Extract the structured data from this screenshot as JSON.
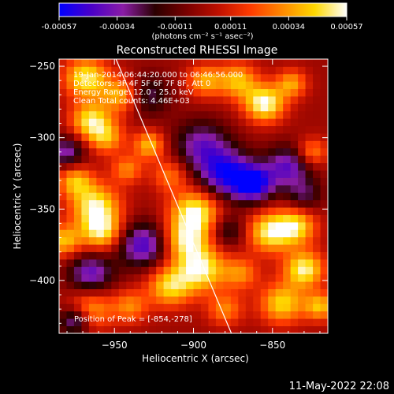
{
  "chart_data": {
    "type": "heatmap",
    "title": "Reconstructed RHESSI Image",
    "colorbar": {
      "ticks": [
        "-0.00057",
        "-0.00034",
        "-0.00011",
        "0.00011",
        "0.00034",
        "0.00057"
      ],
      "unit_label": "(photons cm⁻² s⁻¹ asec⁻²)",
      "range": [
        -0.00057,
        0.00057
      ],
      "colormap": [
        "#0000ff",
        "#4a00c8",
        "#8a1ca6",
        "#2a0000",
        "#7a0000",
        "#c01000",
        "#ff3c00",
        "#ff8a00",
        "#ffd800",
        "#ffffff"
      ]
    },
    "xlabel": "Heliocentric X (arcsec)",
    "ylabel": "Heliocentric Y (arcsec)",
    "xlim": [
      -985,
      -815
    ],
    "ylim": [
      -437,
      -245
    ],
    "xticks": [
      -950,
      -900,
      -850
    ],
    "yticks": [
      -250,
      -300,
      -350,
      -400
    ],
    "xtick_labels": [
      "−950",
      "−900",
      "−850"
    ],
    "ytick_labels": [
      "−250",
      "−300",
      "−350",
      "−400"
    ],
    "limb_line": {
      "points": [
        [
          -949,
          -245
        ],
        [
          -876,
          -437
        ]
      ]
    },
    "info_lines": [
      "19-Jan-2014 06:44:20.000 to 06:46:56.000",
      "Detectors: 3F 4F 5F 6F 7F 8F, Att 0",
      "Energy Range: 12.0 - 25.0 keV",
      "Clean     Total counts: 4.46E+03"
    ],
    "peak_text": "Position of Peak = [-854,-278]",
    "peak_position": [
      -854,
      -278
    ],
    "blobs": [
      {
        "x": -968,
        "y": -258,
        "amp": 0.0005,
        "sigma": 10
      },
      {
        "x": -945,
        "y": -270,
        "amp": 0.00042,
        "sigma": 9
      },
      {
        "x": -965,
        "y": -288,
        "amp": 0.00048,
        "sigma": 9
      },
      {
        "x": -955,
        "y": -300,
        "amp": 0.00035,
        "sigma": 8
      },
      {
        "x": -928,
        "y": -305,
        "amp": 0.0004,
        "sigma": 7
      },
      {
        "x": -915,
        "y": -326,
        "amp": 0.00028,
        "sigma": 8
      },
      {
        "x": -942,
        "y": -322,
        "amp": 0.0003,
        "sigma": 7
      },
      {
        "x": -962,
        "y": -348,
        "amp": 0.00052,
        "sigma": 11
      },
      {
        "x": -975,
        "y": -330,
        "amp": 0.00038,
        "sigma": 8
      },
      {
        "x": -958,
        "y": -366,
        "amp": 0.00045,
        "sigma": 9
      },
      {
        "x": -982,
        "y": -372,
        "amp": 0.0004,
        "sigma": 8
      },
      {
        "x": -899,
        "y": -352,
        "amp": 0.00055,
        "sigma": 11
      },
      {
        "x": -905,
        "y": -372,
        "amp": 0.00045,
        "sigma": 10
      },
      {
        "x": -895,
        "y": -392,
        "amp": 0.00052,
        "sigma": 11
      },
      {
        "x": -915,
        "y": -404,
        "amp": 0.00045,
        "sigma": 10
      },
      {
        "x": -870,
        "y": -395,
        "amp": 0.0003,
        "sigma": 8
      },
      {
        "x": -855,
        "y": -276,
        "amp": 0.00057,
        "sigma": 9
      },
      {
        "x": -872,
        "y": -260,
        "amp": 0.0004,
        "sigma": 9
      },
      {
        "x": -838,
        "y": -262,
        "amp": 0.00035,
        "sigma": 7
      },
      {
        "x": -825,
        "y": -310,
        "amp": 0.00032,
        "sigma": 7
      },
      {
        "x": -893,
        "y": -260,
        "amp": 0.00036,
        "sigma": 8
      },
      {
        "x": -852,
        "y": -366,
        "amp": 0.0005,
        "sigma": 10
      },
      {
        "x": -835,
        "y": -362,
        "amp": 0.00045,
        "sigma": 9
      },
      {
        "x": -830,
        "y": -392,
        "amp": 0.00053,
        "sigma": 9
      },
      {
        "x": -844,
        "y": -416,
        "amp": 0.00045,
        "sigma": 10
      },
      {
        "x": -820,
        "y": -418,
        "amp": 0.0004,
        "sigma": 7
      },
      {
        "x": -880,
        "y": -420,
        "amp": 0.0003,
        "sigma": 8
      },
      {
        "x": -940,
        "y": -418,
        "amp": 0.0003,
        "sigma": 8
      },
      {
        "x": -965,
        "y": -420,
        "amp": 0.00035,
        "sigma": 10
      },
      {
        "x": -895,
        "y": -305,
        "amp": -0.00035,
        "sigma": 12
      },
      {
        "x": -880,
        "y": -325,
        "amp": -0.0005,
        "sigma": 12
      },
      {
        "x": -862,
        "y": -332,
        "amp": -0.00055,
        "sigma": 9
      },
      {
        "x": -932,
        "y": -375,
        "amp": -0.00045,
        "sigma": 11
      },
      {
        "x": -965,
        "y": -395,
        "amp": -0.0004,
        "sigma": 10
      },
      {
        "x": -840,
        "y": -320,
        "amp": -0.0004,
        "sigma": 10
      },
      {
        "x": -930,
        "y": -270,
        "amp": -0.0003,
        "sigma": 10
      },
      {
        "x": -980,
        "y": -310,
        "amp": -0.00035,
        "sigma": 8
      },
      {
        "x": -975,
        "y": -428,
        "amp": -0.0004,
        "sigma": 7
      },
      {
        "x": -878,
        "y": -365,
        "amp": -0.00025,
        "sigma": 8
      },
      {
        "x": -830,
        "y": -340,
        "amp": -0.00025,
        "sigma": 8
      }
    ]
  },
  "footer": {
    "date": "11-May-2022 22:08"
  }
}
